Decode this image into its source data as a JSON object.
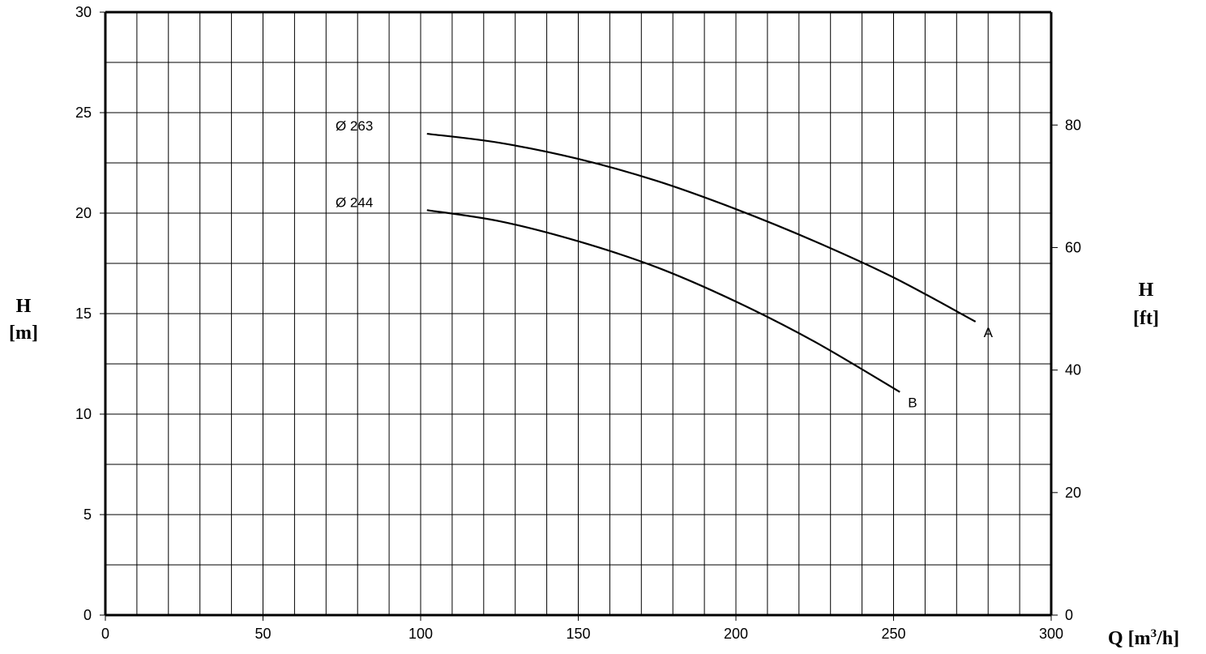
{
  "chart_data": {
    "type": "line",
    "xlabel": "Q [m³/h]",
    "xlabel_main": "Q [m",
    "xlabel_sup": "3",
    "xlabel_tail": "/h]",
    "ylabel": [
      "H",
      "[m]"
    ],
    "y2label": [
      "H",
      "[ft]"
    ],
    "xlim": [
      0,
      300
    ],
    "ylim": [
      0,
      30
    ],
    "y2lim_ft": [
      0,
      98.4
    ],
    "x_ticks": [
      0,
      50,
      100,
      150,
      200,
      250,
      300
    ],
    "y_ticks": [
      0,
      5,
      10,
      15,
      20,
      25,
      30
    ],
    "y2_ticks": [
      0,
      20,
      40,
      60,
      80
    ],
    "grid": true,
    "grid_x_step": 10,
    "grid_y_step": 2.5,
    "series": [
      {
        "name": "A",
        "diameter_label": "Ø 263",
        "x": [
          102,
          125,
          150,
          175,
          200,
          225,
          250,
          276
        ],
        "y": [
          23.95,
          23.5,
          22.7,
          21.6,
          20.2,
          18.6,
          16.8,
          14.6
        ]
      },
      {
        "name": "B",
        "diameter_label": "Ø 244",
        "x": [
          102,
          125,
          150,
          175,
          200,
          225,
          252
        ],
        "y": [
          20.15,
          19.6,
          18.6,
          17.3,
          15.6,
          13.6,
          11.1
        ]
      }
    ],
    "colors": {
      "line": "#000000",
      "grid": "#000000"
    }
  }
}
